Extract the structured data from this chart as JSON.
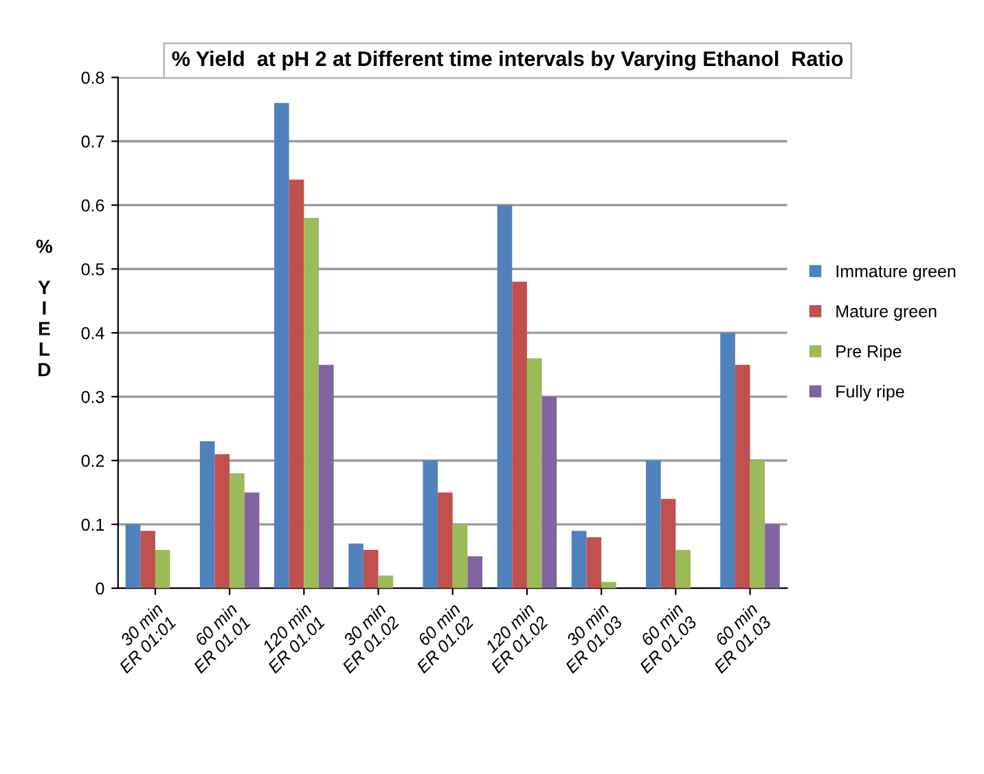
{
  "chart_data": {
    "type": "bar",
    "title": "% Yield  at pH 2 at Different time intervals by Varying Ethanol  Ratio",
    "ylabel": "% YIELD",
    "categories": [
      "30 min\nER 01:01",
      "60 min\nER 01.01",
      "120 min\nER 01.01",
      "30 min\nER 01.02",
      "60 min\nER 01.02",
      "120 min\nER 01.02",
      "30 min\nER 01.03",
      "60 min\nER 01.03",
      "60 min\nER 01.03"
    ],
    "series": [
      {
        "name": "Immature green",
        "color": "#4f81bd",
        "values": [
          0.1,
          0.23,
          0.76,
          0.07,
          0.2,
          0.6,
          0.09,
          0.2,
          0.4
        ]
      },
      {
        "name": "Mature green",
        "color": "#c0504d",
        "values": [
          0.09,
          0.21,
          0.64,
          0.06,
          0.15,
          0.48,
          0.08,
          0.14,
          0.35
        ]
      },
      {
        "name": "Pre Ripe",
        "color": "#9bbb59",
        "values": [
          0.06,
          0.18,
          0.58,
          0.02,
          0.1,
          0.36,
          0.01,
          0.06,
          0.2
        ]
      },
      {
        "name": "Fully ripe",
        "color": "#8064a2",
        "values": [
          0.0,
          0.15,
          0.35,
          0.0,
          0.05,
          0.3,
          0.0,
          0.0,
          0.1
        ]
      }
    ],
    "ylim": [
      0,
      0.8
    ],
    "yticks": [
      0,
      0.1,
      0.2,
      0.3,
      0.4,
      0.5,
      0.6,
      0.7,
      0.8
    ],
    "grid": "y",
    "legend": "right"
  }
}
